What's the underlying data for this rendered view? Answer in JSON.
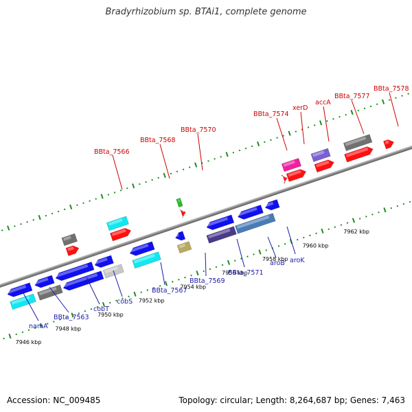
{
  "header": {
    "title": "Bradyrhizobium sp. BTAi1, complete genome"
  },
  "footer": {
    "accession": "Accession: NC_009485",
    "summary": "Topology: circular; Length: 8,264,687 bp; Genes: 7,463"
  },
  "scale_labels": [
    "7946 kbp",
    "7948 kbp",
    "7950 kbp",
    "7952 kbp",
    "7954 kbp",
    "7956 kbp",
    "7958 kbp",
    "7960 kbp",
    "7962 kbp"
  ],
  "forward_gene_labels": [
    "BBta_7566",
    "BBta_7568",
    "BBta_7570",
    "BBta_7574",
    "xerD",
    "accA",
    "BBta_7577",
    "BBta_7578"
  ],
  "reverse_gene_labels": [
    "namA",
    "BBta_7563",
    "cobT",
    "cobS",
    "BBta_7567",
    "BBta_7569",
    "BBta_7571",
    "aroB",
    "aroK"
  ],
  "colors": {
    "backbone": "#8a8a8a",
    "tick": "#1f8a1f",
    "forward_label": "#cc0000",
    "reverse_label": "#1a1aa6",
    "gene_red": "#ff1010",
    "gene_blue": "#1010ee",
    "gene_cyan": "#10e8f0",
    "gene_gray": "#707070",
    "gene_lightgray": "#c8c8c8",
    "gene_green": "#20c020",
    "gene_olive": "#b8a860",
    "gene_magenta": "#f020a0",
    "gene_purple": "#7a60d0",
    "gene_darkpurple": "#4a3a8a",
    "gene_steel": "#4a7ab8"
  }
}
